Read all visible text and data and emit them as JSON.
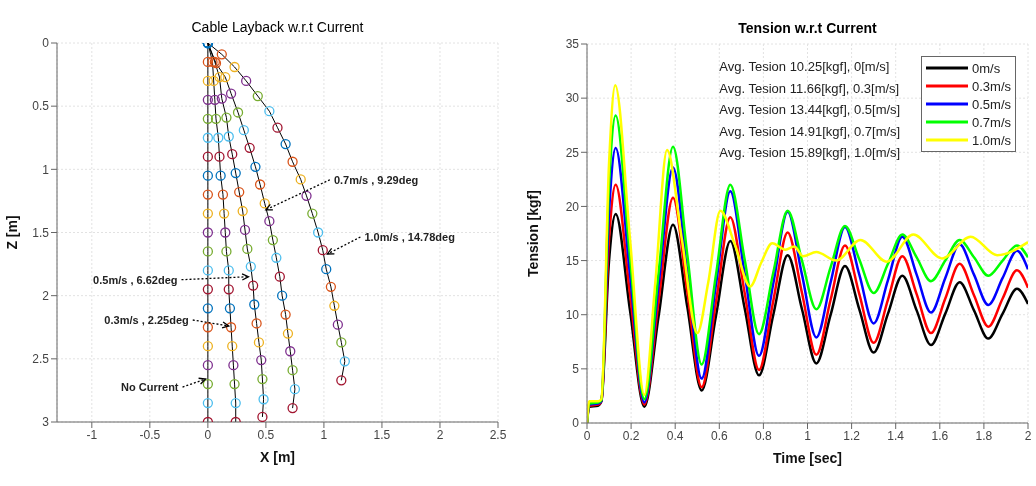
{
  "chart_data": [
    {
      "type": "line",
      "title": "Cable Layback w.r.t Current",
      "xlabel": "X [m]",
      "ylabel": "Z [m]",
      "xlim": [
        -1.3,
        2.5
      ],
      "xticks": [
        -1,
        -0.5,
        0,
        0.5,
        1,
        1.5,
        2,
        2.5
      ],
      "ylim": [
        3,
        0
      ],
      "yticks": [
        0,
        0.5,
        1,
        1.5,
        2,
        2.5,
        3
      ],
      "grid": true,
      "marker": "circle",
      "line_style": "solid",
      "series": [
        {
          "color": "#000000",
          "x": [
            0,
            0,
            0,
            0,
            0,
            0,
            0,
            0,
            0,
            0,
            0,
            0,
            0,
            0,
            0,
            0,
            0,
            0,
            0,
            0,
            0
          ],
          "values": [
            0,
            0.15,
            0.3,
            0.45,
            0.6,
            0.75,
            0.9,
            1.05,
            1.2,
            1.35,
            1.5,
            1.65,
            1.8,
            1.95,
            2.1,
            2.25,
            2.4,
            2.55,
            2.7,
            2.85,
            3
          ],
          "colors": [
            "#0072bd",
            "#d95319",
            "#edb120",
            "#7e2f8e",
            "#77ac30",
            "#4dbeee",
            "#a2142f",
            "#0072bd",
            "#d95319",
            "#edb120",
            "#7e2f8e",
            "#77ac30",
            "#4dbeee",
            "#a2142f",
            "#0072bd",
            "#d95319",
            "#edb120",
            "#7e2f8e",
            "#77ac30",
            "#4dbeee",
            "#a2142f"
          ]
        },
        {
          "color": "#000000",
          "x": [
            0,
            0.04,
            0.05,
            0.06,
            0.07,
            0.09,
            0.1,
            0.11,
            0.13,
            0.14,
            0.15,
            0.16,
            0.18,
            0.18,
            0.19,
            0.2,
            0.21,
            0.22,
            0.23,
            0.24,
            0.24
          ],
          "values": [
            0,
            0.15,
            0.3,
            0.45,
            0.6,
            0.75,
            0.9,
            1.05,
            1.2,
            1.35,
            1.5,
            1.65,
            1.8,
            1.95,
            2.1,
            2.25,
            2.4,
            2.55,
            2.7,
            2.85,
            3
          ],
          "colors": [
            "#0072bd",
            "#d95319",
            "#edb120",
            "#7e2f8e",
            "#77ac30",
            "#4dbeee",
            "#a2142f",
            "#0072bd",
            "#d95319",
            "#edb120",
            "#7e2f8e",
            "#77ac30",
            "#4dbeee",
            "#a2142f",
            "#0072bd",
            "#d95319",
            "#edb120",
            "#7e2f8e",
            "#77ac30",
            "#4dbeee",
            "#a2142f"
          ]
        },
        {
          "color": "#000000",
          "x": [
            0,
            0.06,
            0.1,
            0.12,
            0.16,
            0.18,
            0.21,
            0.24,
            0.27,
            0.3,
            0.32,
            0.34,
            0.37,
            0.39,
            0.4,
            0.42,
            0.44,
            0.46,
            0.47,
            0.48,
            0.47
          ],
          "values": [
            0,
            0.15,
            0.27,
            0.44,
            0.59,
            0.74,
            0.88,
            1.03,
            1.18,
            1.33,
            1.48,
            1.63,
            1.77,
            1.92,
            2.07,
            2.22,
            2.37,
            2.51,
            2.66,
            2.82,
            2.96
          ],
          "colors": [
            "#0072bd",
            "#d95319",
            "#edb120",
            "#7e2f8e",
            "#77ac30",
            "#4dbeee",
            "#a2142f",
            "#0072bd",
            "#d95319",
            "#edb120",
            "#7e2f8e",
            "#77ac30",
            "#4dbeee",
            "#a2142f",
            "#0072bd",
            "#d95319",
            "#edb120",
            "#7e2f8e",
            "#77ac30",
            "#4dbeee",
            "#a2142f"
          ]
        },
        {
          "color": "#000000",
          "x": [
            0,
            0.07,
            0.15,
            0.2,
            0.26,
            0.31,
            0.36,
            0.41,
            0.45,
            0.49,
            0.53,
            0.56,
            0.59,
            0.62,
            0.64,
            0.67,
            0.69,
            0.71,
            0.73,
            0.75,
            0.73
          ],
          "values": [
            0,
            0.16,
            0.27,
            0.4,
            0.55,
            0.69,
            0.83,
            0.98,
            1.12,
            1.27,
            1.41,
            1.56,
            1.7,
            1.85,
            2,
            2.15,
            2.3,
            2.44,
            2.59,
            2.74,
            2.89
          ],
          "colors": [
            "#0072bd",
            "#d95319",
            "#edb120",
            "#7e2f8e",
            "#77ac30",
            "#4dbeee",
            "#a2142f",
            "#0072bd",
            "#d95319",
            "#edb120",
            "#7e2f8e",
            "#77ac30",
            "#4dbeee",
            "#a2142f",
            "#0072bd",
            "#d95319",
            "#edb120",
            "#7e2f8e",
            "#77ac30",
            "#4dbeee",
            "#a2142f"
          ]
        },
        {
          "color": "#000000",
          "x": [
            0,
            0.12,
            0.23,
            0.33,
            0.43,
            0.53,
            0.6,
            0.67,
            0.73,
            0.8,
            0.85,
            0.9,
            0.95,
            0.99,
            1.02,
            1.06,
            1.09,
            1.12,
            1.15,
            1.18,
            1.15
          ],
          "values": [
            0,
            0.09,
            0.19,
            0.3,
            0.42,
            0.54,
            0.67,
            0.8,
            0.94,
            1.08,
            1.21,
            1.35,
            1.5,
            1.64,
            1.79,
            1.93,
            2.08,
            2.23,
            2.37,
            2.52,
            2.67
          ],
          "colors": [
            "#0072bd",
            "#d95319",
            "#edb120",
            "#7e2f8e",
            "#77ac30",
            "#4dbeee",
            "#a2142f",
            "#0072bd",
            "#d95319",
            "#edb120",
            "#7e2f8e",
            "#77ac30",
            "#4dbeee",
            "#a2142f",
            "#0072bd",
            "#d95319",
            "#edb120",
            "#7e2f8e",
            "#77ac30",
            "#4dbeee",
            "#a2142f"
          ]
        }
      ],
      "annotations": [
        {
          "text": "0.7m/s , 9.29deg",
          "x": 0.5,
          "y": 1.32
        },
        {
          "text": "1.0m/s , 14.78deg",
          "x": 1.03,
          "y": 1.67
        },
        {
          "text": "0.5m/s , 6.62deg",
          "x": 0.35,
          "y": 1.85
        },
        {
          "text": "0.3m/s , 2.25deg",
          "x": 0.18,
          "y": 2.24
        },
        {
          "text": "No Current",
          "x": -0.02,
          "y": 2.66
        }
      ]
    },
    {
      "type": "line",
      "title": "Tension w.r.t Current",
      "xlabel": "Time [sec]",
      "ylabel": "Tension [kgf]",
      "xlim": [
        0,
        2
      ],
      "xticks": [
        0,
        0.2,
        0.4,
        0.6,
        0.8,
        1,
        1.2,
        1.4,
        1.6,
        1.8,
        2
      ],
      "ylim": [
        0,
        35
      ],
      "yticks": [
        0,
        5,
        10,
        15,
        20,
        25,
        30,
        35
      ],
      "grid": true,
      "legend": "top right",
      "line_style": "solid",
      "x": [
        0,
        0.01,
        0.05,
        0.065,
        0.1,
        0.13,
        0.195,
        0.26,
        0.325,
        0.39,
        0.455,
        0.52,
        0.585,
        0.65,
        0.715,
        0.78,
        0.845,
        0.91,
        0.975,
        1.04,
        1.105,
        1.17,
        1.235,
        1.3,
        1.365,
        1.43,
        1.495,
        1.56,
        1.625,
        1.69,
        1.755,
        1.82,
        1.885,
        1.95,
        2
      ],
      "series": [
        {
          "name": "0m/s",
          "color": "#000000",
          "values": [
            0,
            1.5,
            1.6,
            2,
            15,
            19.3,
            10.4,
            1.5,
            9.9,
            18.3,
            10.7,
            3,
            9.9,
            16.8,
            10.6,
            4.4,
            10,
            15.5,
            10.5,
            5.5,
            10,
            14.5,
            10.5,
            6.5,
            10.1,
            13.6,
            10.4,
            7.2,
            10.1,
            13,
            10.4,
            7.8,
            10.1,
            12.4,
            11
          ]
        },
        {
          "name": "0.3m/s",
          "color": "#ff0000",
          "values": [
            0,
            1.6,
            1.7,
            2,
            17,
            22,
            11.9,
            1.7,
            11.3,
            20.8,
            12.1,
            3.3,
            11.2,
            19,
            12,
            4.9,
            11.3,
            17.6,
            12,
            6.3,
            11.4,
            16.4,
            11.9,
            7.4,
            11.4,
            15.4,
            11.9,
            8.3,
            11.5,
            14.7,
            11.8,
            8.9,
            11.5,
            14.1,
            12.5
          ]
        },
        {
          "name": "0.5m/s",
          "color": "#0000ff",
          "values": [
            0,
            1.7,
            1.8,
            2,
            19.5,
            25.4,
            13.7,
            1.9,
            12.8,
            23.6,
            13.9,
            4.1,
            12.8,
            21.4,
            13.8,
            6.2,
            12.9,
            19.5,
            13.7,
            7.9,
            13,
            18.1,
            13.7,
            9.2,
            13.2,
            17.2,
            13.7,
            10.2,
            13.4,
            16.5,
            13.7,
            10.9,
            13.4,
            15.9,
            14.2
          ]
        },
        {
          "name": "0.7m/s",
          "color": "#00ff00",
          "values": [
            0,
            1.8,
            1.9,
            2.1,
            22,
            28.4,
            15.3,
            2.2,
            13.9,
            25.5,
            15.5,
            5.4,
            13.7,
            22,
            15.1,
            8.2,
            13.9,
            19.6,
            15,
            10.5,
            14.4,
            18.2,
            15.1,
            12,
            14.7,
            17.4,
            15.3,
            13.1,
            15,
            16.9,
            15.3,
            13.6,
            15,
            16.4,
            15.3
          ]
        },
        {
          "name": "1.0m/s",
          "color": "#ffff00",
          "x": [
            0,
            0.01,
            0.05,
            0.065,
            0.1,
            0.128,
            0.195,
            0.26,
            0.31,
            0.363,
            0.43,
            0.5,
            0.55,
            0.605,
            0.67,
            0.74,
            0.79,
            0.84,
            0.9,
            0.94,
            0.98,
            1.04,
            1.13,
            1.24,
            1.36,
            1.48,
            1.61,
            1.74,
            1.86,
            2
          ],
          "values": [
            0,
            2,
            2,
            2.2,
            24,
            31.2,
            17,
            2.6,
            13,
            25.2,
            17,
            8.3,
            13,
            19.6,
            16.5,
            12.6,
            14.8,
            16.6,
            16,
            16.3,
            15.4,
            15.8,
            15,
            16.9,
            14.9,
            17.4,
            15.2,
            17.2,
            15.5,
            16.7
          ]
        }
      ],
      "annotations": [
        "Avg. Tesion 10.25[kgf], 0[m/s]",
        "Avg. Tesion 11.66[kgf], 0.3[m/s]",
        "Avg. Tesion 13.44[kgf], 0.5[m/s]",
        "Avg. Tesion 14.91[kgf], 0.7[m/s]",
        "Avg. Tesion 15.89[kgf], 1.0[m/s]"
      ]
    }
  ]
}
